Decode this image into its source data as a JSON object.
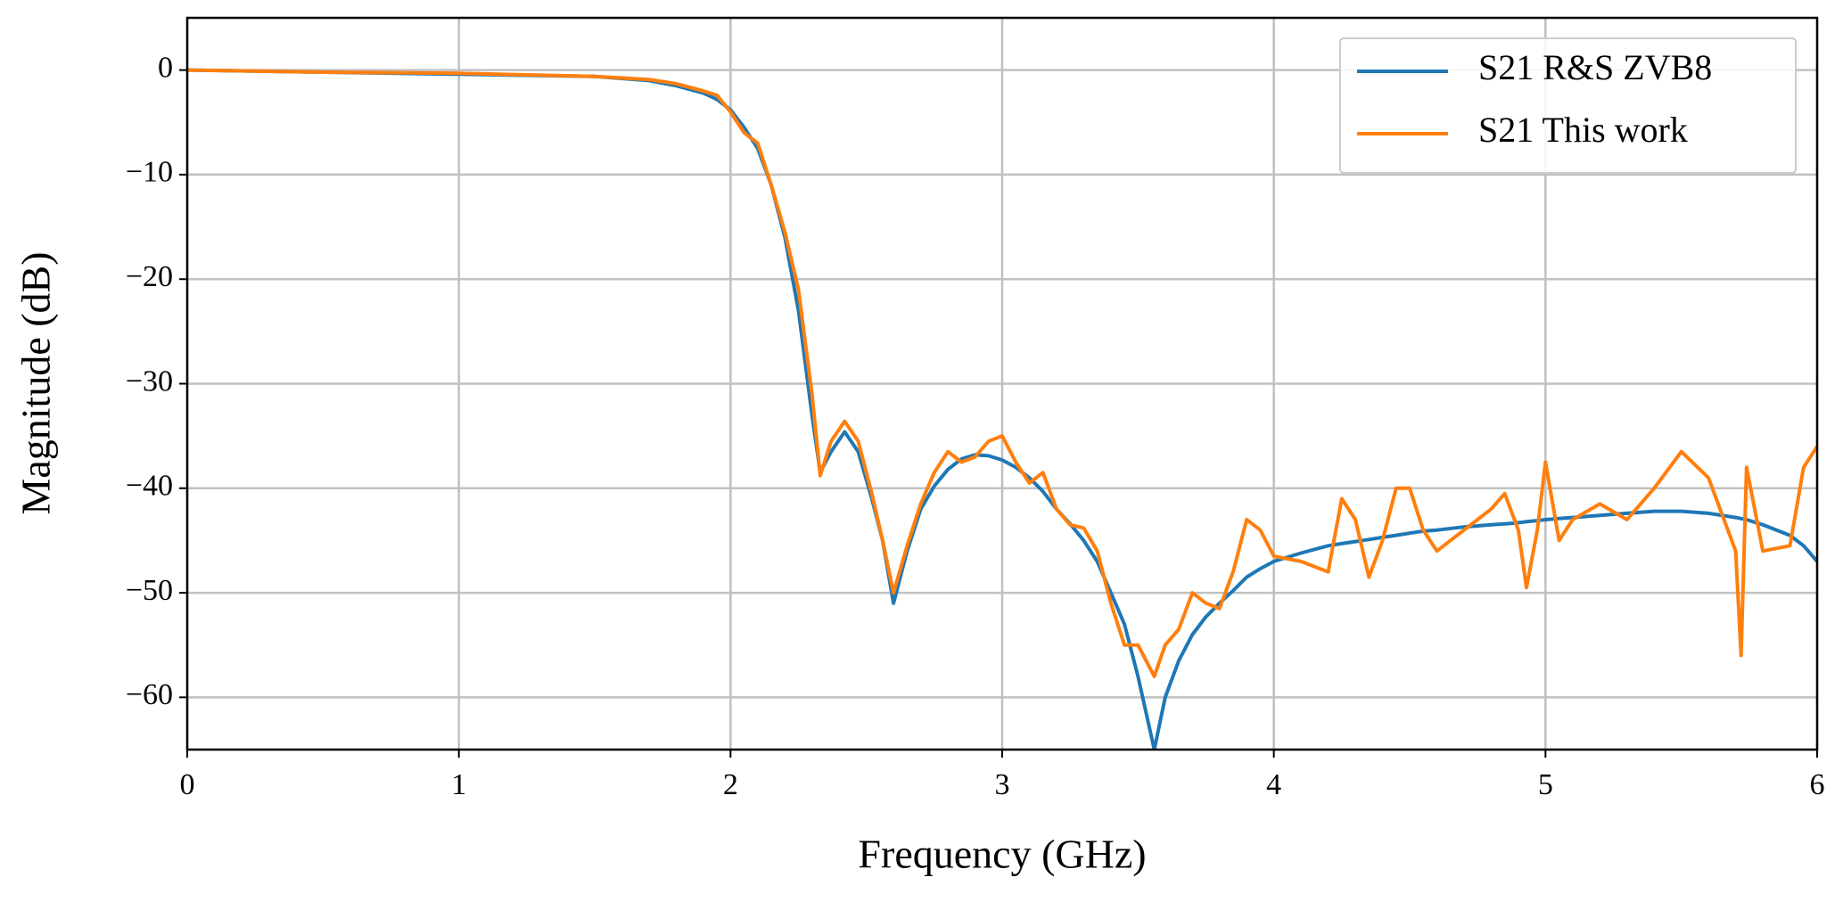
{
  "chart_data": {
    "type": "line",
    "x_label": "Frequency (GHz)",
    "y_label": "Magnitude (dB)",
    "x": [
      0,
      0.5,
      1,
      1.5,
      1.7,
      1.8,
      1.9,
      1.95,
      2.0,
      2.05,
      2.1,
      2.15,
      2.2,
      2.25,
      2.3,
      2.33,
      2.37,
      2.42,
      2.47,
      2.52,
      2.56,
      2.6,
      2.65,
      2.7,
      2.75,
      2.8,
      2.85,
      2.9,
      2.95,
      3.0,
      3.05,
      3.1,
      3.15,
      3.2,
      3.25,
      3.3,
      3.35,
      3.4,
      3.45,
      3.5,
      3.56,
      3.6,
      3.65,
      3.7,
      3.75,
      3.8,
      3.85,
      3.9,
      3.95,
      4.0,
      4.1,
      4.2,
      4.25,
      4.3,
      4.35,
      4.4,
      4.45,
      4.5,
      4.55,
      4.6,
      4.7,
      4.8,
      4.85,
      4.9,
      4.93,
      4.97,
      5.0,
      5.05,
      5.1,
      5.2,
      5.3,
      5.4,
      5.5,
      5.6,
      5.7,
      5.72,
      5.74,
      5.8,
      5.9,
      5.95,
      6.0
    ],
    "series": [
      {
        "name": "S21 R&S ZVB8",
        "color": "#1f77b4",
        "values": [
          0,
          -0.2,
          -0.4,
          -0.6,
          -1,
          -1.5,
          -2.2,
          -2.8,
          -3.8,
          -5.5,
          -7.5,
          -11,
          -16,
          -23,
          -33,
          -38.5,
          -36.5,
          -34.6,
          -36.5,
          -41,
          -45,
          -51,
          -46,
          -42,
          -39.8,
          -38.2,
          -37.2,
          -36.8,
          -36.9,
          -37.3,
          -38,
          -39,
          -40.3,
          -42,
          -43.4,
          -45,
          -47,
          -50,
          -53,
          -58,
          -65,
          -60,
          -56.5,
          -54,
          -52.3,
          -51,
          -49.8,
          -48.5,
          -47.7,
          -47,
          -46.2,
          -45.5,
          -45.3,
          -45.1,
          -44.9,
          -44.7,
          -44.5,
          -44.3,
          -44.1,
          -44,
          -43.7,
          -43.5,
          -43.4,
          -43.3,
          -43.2,
          -43.1,
          -43,
          -42.9,
          -42.8,
          -42.6,
          -42.4,
          -42.2,
          -42.2,
          -42.4,
          -42.8,
          -42.9,
          -43,
          -43.5,
          -44.5,
          -45.5,
          -47
        ]
      },
      {
        "name": "S21 This work",
        "color": "#ff7f0e",
        "values": [
          0,
          -0.2,
          -0.3,
          -0.6,
          -0.9,
          -1.3,
          -2,
          -2.4,
          -4,
          -6,
          -7,
          -11,
          -15.5,
          -21,
          -31,
          -38.8,
          -35.5,
          -33.6,
          -35.5,
          -40.5,
          -45,
          -50,
          -45.5,
          -41.5,
          -38.5,
          -36.5,
          -37.5,
          -37,
          -35.5,
          -35,
          -37.5,
          -39.5,
          -38.5,
          -42,
          -43.5,
          -43.8,
          -46,
          -51,
          -55,
          -55,
          -58,
          -55,
          -53.5,
          -50,
          -51,
          -51.5,
          -48,
          -43,
          -44,
          -46.5,
          -47,
          -48,
          -41,
          -43,
          -48.5,
          -45,
          -40,
          -40,
          -44,
          -46,
          -44,
          -42,
          -40.5,
          -44,
          -49.5,
          -44,
          -37.5,
          -45,
          -43,
          -41.5,
          -43,
          -40,
          -36.5,
          -39,
          -46,
          -56,
          -38,
          -46,
          -45.5,
          -38,
          -36
        ]
      }
    ],
    "xlim": [
      0,
      6
    ],
    "xticks": [
      0,
      1,
      2,
      3,
      4,
      5,
      6
    ],
    "ylim": [
      -65,
      5
    ],
    "yticks": [
      {
        "value": -60,
        "label": "−60"
      },
      {
        "value": -50,
        "label": "−50"
      },
      {
        "value": -40,
        "label": "−40"
      },
      {
        "value": -30,
        "label": "−30"
      },
      {
        "value": -20,
        "label": "−20"
      },
      {
        "value": -10,
        "label": "−10"
      },
      0
    ],
    "grid": true,
    "legend": "upper right"
  }
}
